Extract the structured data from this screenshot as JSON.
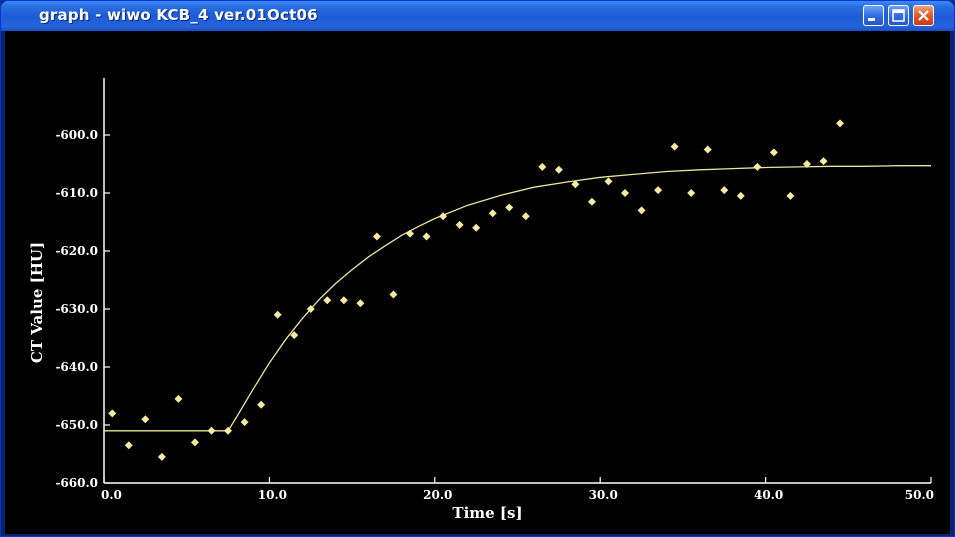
{
  "window": {
    "title": "graph - wiwo KCB_4 ver.01Oct06",
    "title_color": "#ffffff",
    "titlebar_color": "#2a6fe0",
    "min_icon": "minimize-icon",
    "max_icon": "maximize-icon",
    "close_icon": "close-icon"
  },
  "chart_data": {
    "type": "scatter",
    "xlabel": "Time [s]",
    "ylabel": "CT Value [HU]",
    "xlim": [
      0,
      50
    ],
    "ylim": [
      -660,
      -590
    ],
    "x_ticks": [
      "0.0",
      "10.0",
      "20.0",
      "30.0",
      "40.0",
      "50.0"
    ],
    "x_tick_values": [
      0,
      10,
      20,
      30,
      40,
      50
    ],
    "y_ticks": [
      "-600.0",
      "-610.0",
      "-620.0",
      "-630.0",
      "-640.0",
      "-650.0",
      "-660.0"
    ],
    "y_tick_values": [
      -600,
      -610,
      -620,
      -630,
      -640,
      -650,
      -660
    ],
    "grid": false,
    "background": "#000000",
    "point_color": "#f4eaa0",
    "curve_color": "#e8e59a",
    "series": [
      {
        "kind": "points",
        "x": [
          0.5,
          1.5,
          2.5,
          3.5,
          4.5,
          5.5,
          6.5,
          7.5,
          8.5,
          9.5,
          10.5,
          11.5,
          12.5,
          13.5,
          14.5,
          15.5,
          16.5,
          17.5,
          18.5,
          19.5,
          20.5,
          21.5,
          22.5,
          23.5,
          24.5,
          25.5,
          26.5,
          27.5,
          28.5,
          29.5,
          30.5,
          31.5,
          32.5,
          33.5,
          34.5,
          35.5,
          36.5,
          37.5,
          38.5,
          39.5,
          40.5,
          41.5,
          42.5,
          43.5,
          44.5
        ],
        "y": [
          -648,
          -653.5,
          -649,
          -655.5,
          -645.5,
          -653,
          -651,
          -651,
          -649.5,
          -646.5,
          -631,
          -634.5,
          -630,
          -628.5,
          -628.5,
          -629,
          -617.5,
          -627.5,
          -617,
          -617.5,
          -614,
          -615.5,
          -616,
          -613.5,
          -612.5,
          -614,
          -605.5,
          -606,
          -608.5,
          -611.5,
          -608,
          -610,
          -613,
          -609.5,
          -602,
          -610,
          -602.5,
          -609.5,
          -610.5,
          -605.5,
          -603,
          -610.5,
          -605,
          -604.5,
          -598
        ]
      },
      {
        "kind": "fit-curve",
        "x": [
          0,
          2,
          4,
          6,
          7.5,
          8,
          9,
          10,
          11,
          12,
          13,
          14,
          15,
          16,
          17,
          18,
          19,
          20,
          22,
          24,
          26,
          28,
          30,
          32,
          34,
          36,
          38,
          40,
          42,
          44,
          46,
          48,
          50
        ],
        "y": [
          -651,
          -651,
          -651,
          -651,
          -651,
          -648.7,
          -643.9,
          -639.3,
          -635.2,
          -631.6,
          -628.4,
          -625.6,
          -623.2,
          -621,
          -619.1,
          -617.3,
          -615.8,
          -614.4,
          -612.1,
          -610.4,
          -609,
          -608.1,
          -607.3,
          -606.8,
          -606.3,
          -606,
          -605.8,
          -605.6,
          -605.5,
          -605.4,
          -605.4,
          -605.3,
          -605.3
        ]
      }
    ]
  }
}
